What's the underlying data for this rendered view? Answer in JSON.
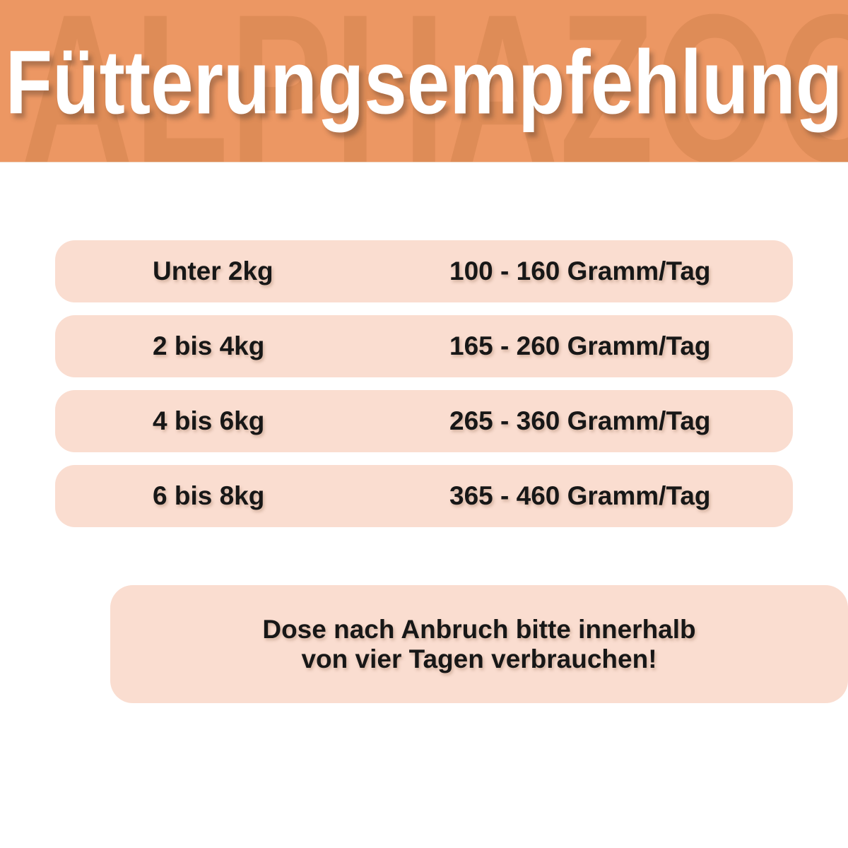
{
  "header": {
    "title": "Fütterungsempfehlung",
    "watermark": "ALPHAZOO"
  },
  "table": {
    "rows": [
      {
        "weight": "Unter 2kg",
        "amount": "100 - 160 Gramm/Tag"
      },
      {
        "weight": "2 bis 4kg",
        "amount": "165 - 260 Gramm/Tag"
      },
      {
        "weight": "4 bis 6kg",
        "amount": "265 - 360 Gramm/Tag"
      },
      {
        "weight": "6 bis 8kg",
        "amount": "365 - 460 Gramm/Tag"
      }
    ]
  },
  "note": {
    "line1": "Dose nach Anbruch bitte innerhalb",
    "line2": "von vier Tagen verbrauchen!"
  },
  "colors": {
    "header_bg": "#EC9763",
    "watermark": "#DE8C57",
    "row_bg": "#FADDD0",
    "note_bg": "#FADDD0",
    "title_text": "#FFFFFF",
    "body_text": "#171717",
    "page_bg": "#FFFFFF"
  }
}
